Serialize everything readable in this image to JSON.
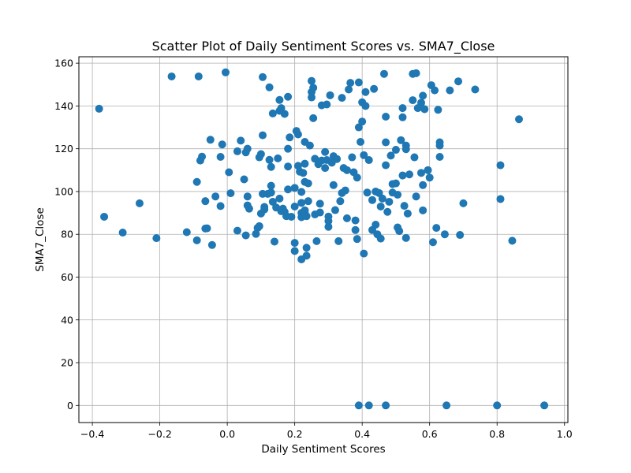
{
  "chart_data": {
    "type": "scatter",
    "title": "Scatter Plot of Daily Sentiment Scores vs. SMA7_Close",
    "xlabel": "Daily Sentiment Scores",
    "ylabel": "SMA7_Close",
    "xlim": [
      -0.44,
      1.01
    ],
    "ylim": [
      -8,
      163
    ],
    "xticks": [
      -0.4,
      -0.2,
      0.0,
      0.2,
      0.4,
      0.6,
      0.8,
      1.0
    ],
    "xtick_labels": [
      "−0.4",
      "−0.2",
      "0.0",
      "0.2",
      "0.4",
      "0.6",
      "0.8",
      "1.0"
    ],
    "yticks": [
      0,
      20,
      40,
      60,
      80,
      100,
      120,
      140,
      160
    ],
    "ytick_labels": [
      "0",
      "20",
      "40",
      "60",
      "80",
      "100",
      "120",
      "140",
      "160"
    ],
    "grid": true,
    "marker_color": "#1f77b4",
    "points": [
      [
        -0.38,
        138.7
      ],
      [
        -0.365,
        88.2
      ],
      [
        -0.31,
        80.8
      ],
      [
        -0.26,
        94.5
      ],
      [
        -0.21,
        78.2
      ],
      [
        -0.165,
        153.8
      ],
      [
        -0.12,
        81.0
      ],
      [
        -0.09,
        104.5
      ],
      [
        -0.085,
        153.8
      ],
      [
        -0.09,
        77.2
      ],
      [
        -0.08,
        114.5
      ],
      [
        -0.075,
        116.3
      ],
      [
        -0.065,
        95.5
      ],
      [
        -0.06,
        82.8
      ],
      [
        -0.05,
        124.2
      ],
      [
        -0.035,
        97.7
      ],
      [
        -0.02,
        93.2
      ],
      [
        -0.015,
        122.0
      ],
      [
        -0.005,
        155.7
      ],
      [
        0.005,
        109.0
      ],
      [
        0.01,
        99.2
      ],
      [
        -0.045,
        75.0
      ],
      [
        -0.065,
        82.7
      ],
      [
        -0.02,
        116.2
      ],
      [
        0.03,
        118.8
      ],
      [
        0.03,
        81.7
      ],
      [
        0.04,
        123.8
      ],
      [
        0.05,
        105.7
      ],
      [
        0.055,
        118.3
      ],
      [
        0.06,
        120.0
      ],
      [
        0.06,
        97.7
      ],
      [
        0.06,
        93.5
      ],
      [
        0.065,
        92.0
      ],
      [
        0.055,
        79.5
      ],
      [
        0.085,
        80.2
      ],
      [
        0.09,
        83.0
      ],
      [
        0.095,
        83.8
      ],
      [
        0.095,
        116.0
      ],
      [
        0.1,
        117.5
      ],
      [
        0.1,
        89.7
      ],
      [
        0.105,
        126.3
      ],
      [
        0.11,
        91.6
      ],
      [
        0.11,
        92.8
      ],
      [
        0.12,
        98.9
      ],
      [
        0.105,
        98.9
      ],
      [
        0.105,
        153.5
      ],
      [
        0.125,
        148.7
      ],
      [
        0.125,
        114.8
      ],
      [
        0.13,
        111.5
      ],
      [
        0.13,
        99.5
      ],
      [
        0.13,
        102.7
      ],
      [
        0.135,
        136.5
      ],
      [
        0.135,
        95.2
      ],
      [
        0.14,
        76.6
      ],
      [
        0.145,
        92.5
      ],
      [
        0.15,
        115.5
      ],
      [
        0.155,
        137.7
      ],
      [
        0.155,
        142.8
      ],
      [
        0.155,
        96.7
      ],
      [
        0.16,
        90.8
      ],
      [
        0.16,
        139.0
      ],
      [
        0.165,
        92.0
      ],
      [
        0.17,
        90.5
      ],
      [
        0.17,
        136.3
      ],
      [
        0.175,
        88.5
      ],
      [
        0.18,
        144.3
      ],
      [
        0.18,
        120.0
      ],
      [
        0.18,
        111.7
      ],
      [
        0.18,
        101.0
      ],
      [
        0.185,
        125.3
      ],
      [
        0.19,
        88.2
      ],
      [
        0.2,
        101.7
      ],
      [
        0.2,
        93.0
      ],
      [
        0.2,
        76.0
      ],
      [
        0.2,
        72.2
      ],
      [
        0.205,
        128.3
      ],
      [
        0.21,
        126.7
      ],
      [
        0.21,
        112.0
      ],
      [
        0.215,
        109.3
      ],
      [
        0.22,
        99.8
      ],
      [
        0.22,
        94.7
      ],
      [
        0.22,
        90.0
      ],
      [
        0.22,
        88.0
      ],
      [
        0.22,
        68.3
      ],
      [
        0.225,
        108.7
      ],
      [
        0.23,
        123.2
      ],
      [
        0.23,
        113.0
      ],
      [
        0.23,
        104.5
      ],
      [
        0.23,
        91.2
      ],
      [
        0.23,
        90.0
      ],
      [
        0.235,
        70.0
      ],
      [
        0.235,
        73.7
      ],
      [
        0.235,
        88.5
      ],
      [
        0.24,
        103.8
      ],
      [
        0.24,
        95.5
      ],
      [
        0.245,
        121.5
      ],
      [
        0.25,
        144.0
      ],
      [
        0.25,
        146.5
      ],
      [
        0.25,
        151.7
      ],
      [
        0.255,
        148.5
      ],
      [
        0.255,
        134.3
      ],
      [
        0.26,
        89.3
      ],
      [
        0.26,
        115.3
      ],
      [
        0.265,
        76.8
      ],
      [
        0.27,
        112.8
      ],
      [
        0.275,
        94.3
      ],
      [
        0.275,
        90.2
      ],
      [
        0.28,
        114.5
      ],
      [
        0.28,
        140.3
      ],
      [
        0.29,
        118.5
      ],
      [
        0.29,
        111.0
      ],
      [
        0.295,
        114.7
      ],
      [
        0.295,
        140.7
      ],
      [
        0.3,
        83.5
      ],
      [
        0.3,
        88.3
      ],
      [
        0.3,
        86.2
      ],
      [
        0.305,
        145.0
      ],
      [
        0.31,
        113.5
      ],
      [
        0.315,
        116.5
      ],
      [
        0.315,
        103.0
      ],
      [
        0.32,
        91.3
      ],
      [
        0.325,
        115.2
      ],
      [
        0.33,
        76.8
      ],
      [
        0.335,
        95.5
      ],
      [
        0.34,
        143.8
      ],
      [
        0.34,
        99.3
      ],
      [
        0.345,
        111.0
      ],
      [
        0.35,
        100.5
      ],
      [
        0.355,
        110.0
      ],
      [
        0.355,
        87.5
      ],
      [
        0.36,
        147.7
      ],
      [
        0.365,
        150.8
      ],
      [
        0.37,
        116.0
      ],
      [
        0.375,
        109.0
      ],
      [
        0.38,
        86.5
      ],
      [
        0.38,
        82.0
      ],
      [
        0.385,
        106.5
      ],
      [
        0.385,
        77.8
      ],
      [
        0.39,
        151.0
      ],
      [
        0.39,
        130.0
      ],
      [
        0.395,
        123.2
      ],
      [
        0.4,
        132.7
      ],
      [
        0.4,
        141.7
      ],
      [
        0.405,
        117.0
      ],
      [
        0.405,
        71.0
      ],
      [
        0.41,
        146.5
      ],
      [
        0.41,
        140.0
      ],
      [
        0.415,
        99.5
      ],
      [
        0.42,
        114.7
      ],
      [
        0.43,
        82.0
      ],
      [
        0.43,
        96.0
      ],
      [
        0.435,
        148.0
      ],
      [
        0.44,
        100.0
      ],
      [
        0.44,
        84.5
      ],
      [
        0.445,
        80.0
      ],
      [
        0.45,
        99.3
      ],
      [
        0.455,
        78.0
      ],
      [
        0.455,
        93.0
      ],
      [
        0.46,
        96.7
      ],
      [
        0.465,
        155.0
      ],
      [
        0.47,
        135.0
      ],
      [
        0.47,
        123.0
      ],
      [
        0.47,
        112.3
      ],
      [
        0.475,
        90.5
      ],
      [
        0.48,
        95.2
      ],
      [
        0.485,
        116.8
      ],
      [
        0.49,
        103.5
      ],
      [
        0.49,
        99.5
      ],
      [
        0.5,
        103.8
      ],
      [
        0.5,
        119.5
      ],
      [
        0.505,
        98.5
      ],
      [
        0.505,
        83.2
      ],
      [
        0.51,
        81.5
      ],
      [
        0.515,
        124.0
      ],
      [
        0.52,
        139.0
      ],
      [
        0.52,
        134.7
      ],
      [
        0.52,
        107.5
      ],
      [
        0.525,
        93.3
      ],
      [
        0.53,
        121.5
      ],
      [
        0.53,
        119.8
      ],
      [
        0.53,
        78.3
      ],
      [
        0.535,
        89.7
      ],
      [
        0.54,
        108.0
      ],
      [
        0.55,
        142.7
      ],
      [
        0.55,
        155.0
      ],
      [
        0.555,
        116.0
      ],
      [
        0.56,
        97.7
      ],
      [
        0.56,
        155.3
      ],
      [
        0.565,
        139.0
      ],
      [
        0.575,
        141.5
      ],
      [
        0.575,
        108.7
      ],
      [
        0.58,
        91.2
      ],
      [
        0.58,
        103.0
      ],
      [
        0.58,
        144.8
      ],
      [
        0.585,
        138.5
      ],
      [
        0.595,
        110.0
      ],
      [
        0.6,
        106.5
      ],
      [
        0.605,
        149.7
      ],
      [
        0.61,
        76.3
      ],
      [
        0.615,
        147.3
      ],
      [
        0.625,
        138.2
      ],
      [
        0.63,
        123.0
      ],
      [
        0.63,
        121.5
      ],
      [
        0.63,
        116.2
      ],
      [
        0.645,
        80.0
      ],
      [
        0.66,
        147.3
      ],
      [
        0.685,
        151.5
      ],
      [
        0.69,
        79.7
      ],
      [
        0.7,
        94.5
      ],
      [
        0.735,
        147.7
      ],
      [
        0.81,
        112.3
      ],
      [
        0.81,
        96.5
      ],
      [
        0.845,
        77.0
      ],
      [
        0.865,
        133.8
      ],
      [
        0.62,
        83.0
      ],
      [
        0.39,
        0.0
      ],
      [
        0.42,
        0.0
      ],
      [
        0.47,
        0.0
      ],
      [
        0.65,
        0.0
      ],
      [
        0.8,
        0.0
      ],
      [
        0.94,
        0.0
      ]
    ]
  }
}
